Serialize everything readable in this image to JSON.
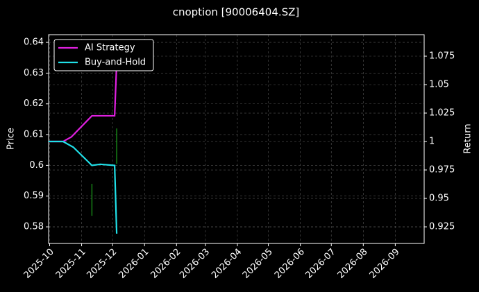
{
  "chart_data": {
    "type": "line",
    "title": "cnoption [90006404.SZ]",
    "ylabel": "Price",
    "y2label": "Return",
    "xlim": [
      "2025-09-30",
      "2026-09-29"
    ],
    "xticks": [
      {
        "value": "2025-10-01",
        "label": "2025-10"
      },
      {
        "value": "2025-11-01",
        "label": "2025-11"
      },
      {
        "value": "2025-12-01",
        "label": "2025-12"
      },
      {
        "value": "2026-01-01",
        "label": "2026-01"
      },
      {
        "value": "2026-02-01",
        "label": "2026-02"
      },
      {
        "value": "2026-03-01",
        "label": "2026-03"
      },
      {
        "value": "2026-04-01",
        "label": "2026-04"
      },
      {
        "value": "2026-05-01",
        "label": "2026-05"
      },
      {
        "value": "2026-06-01",
        "label": "2026-06"
      },
      {
        "value": "2026-07-01",
        "label": "2026-07"
      },
      {
        "value": "2026-08-01",
        "label": "2026-08"
      },
      {
        "value": "2026-09-01",
        "label": "2026-09"
      }
    ],
    "ylim": [
      0.5746,
      0.6425
    ],
    "yticks": [
      0.58,
      0.59,
      0.6,
      0.61,
      0.62,
      0.63,
      0.64
    ],
    "y2lim": [
      0.9104,
      1.0939
    ],
    "y2ticks": [
      0.925,
      0.95,
      0.975,
      1.0,
      1.025,
      1.05,
      1.075
    ],
    "grid": true,
    "legend": "upper left",
    "series": [
      {
        "name": "AI Strategy",
        "color": "#e020e0",
        "axis": "y2",
        "x": [
          "2025-09-30",
          "2025-10-14",
          "2025-10-22",
          "2025-11-11",
          "2025-12-03",
          "2025-12-05"
        ],
        "values": [
          1.0,
          1.0,
          1.004,
          1.0226,
          1.0226,
          1.0695
        ]
      },
      {
        "name": "Buy-and-Hold",
        "color": "#20e0e8",
        "axis": "y2",
        "x": [
          "2025-09-30",
          "2025-10-14",
          "2025-10-24",
          "2025-11-11",
          "2025-11-19",
          "2025-12-03",
          "2025-12-05"
        ],
        "values": [
          1.0,
          1.0,
          0.995,
          0.979,
          0.98,
          0.979,
          0.919
        ]
      }
    ],
    "signals": {
      "color": "#1a9a1a",
      "x": [
        "2025-11-11",
        "2025-12-05"
      ],
      "low": [
        0.5836,
        0.6005
      ],
      "high": [
        0.594,
        0.612
      ]
    }
  }
}
